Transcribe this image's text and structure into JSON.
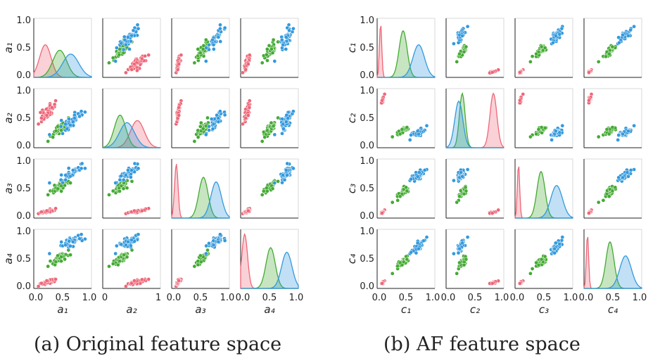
{
  "figure": {
    "caption_a": "(a) Original feature space",
    "caption_b": "(b) AF feature space"
  },
  "colors": {
    "setosa": "#ee6677",
    "versicolor": "#44aa33",
    "virginica": "#3399dd"
  },
  "chart_data": [
    {
      "type": "pairplot",
      "title": "(a) Original feature space",
      "variables": [
        "a₁",
        "a₂",
        "a₃",
        "a₄"
      ],
      "tick_labels": {
        "y_rows": [
          [
            "0.0",
            "0.5",
            "1.0"
          ],
          [
            "0.0",
            "0.5",
            "1.0"
          ],
          [
            "0.0",
            "0.5",
            "1.0"
          ],
          [
            "0.0",
            "0.5",
            "1.0"
          ]
        ],
        "x_cols": [
          [
            "0.0",
            "0.5",
            "1.0"
          ],
          [
            "0",
            "1"
          ],
          [
            "0.0",
            "0.5",
            "1.0"
          ],
          [
            "0.0",
            "0.5",
            "1.0"
          ]
        ]
      },
      "ylim": [
        0,
        1
      ],
      "groups": [
        {
          "color": "#ee6677",
          "mean": [
            0.2,
            0.6,
            0.08,
            0.07
          ],
          "sd": [
            0.1,
            0.12,
            0.03,
            0.05
          ]
        },
        {
          "color": "#44aa33",
          "mean": [
            0.45,
            0.3,
            0.55,
            0.52
          ],
          "sd": [
            0.12,
            0.1,
            0.08,
            0.08
          ]
        },
        {
          "color": "#3399dd",
          "mean": [
            0.64,
            0.42,
            0.77,
            0.8
          ],
          "sd": [
            0.14,
            0.13,
            0.09,
            0.09
          ]
        }
      ],
      "diagonal": "kde"
    },
    {
      "type": "pairplot",
      "title": "(b) AF feature space",
      "variables": [
        "c₁",
        "c₂",
        "c₃",
        "c₄"
      ],
      "tick_labels": {
        "y_rows": [
          [
            "0.0",
            "0.5",
            "1.0"
          ],
          [
            "0.0",
            "0.5",
            "1.0"
          ],
          [
            "0.0",
            "0.5",
            "1.0"
          ],
          [
            "0.0",
            "0.5",
            "1.0"
          ]
        ],
        "x_cols": [
          [
            "0.0",
            "0.5",
            "1.0"
          ],
          [
            "0.0",
            "0.5",
            "1.0"
          ],
          [
            "0.0",
            "0.5",
            "1.0"
          ],
          [
            "0.0",
            "0.5",
            "1.0"
          ]
        ]
      },
      "ylim": [
        0,
        1
      ],
      "groups": [
        {
          "color": "#ee6677",
          "mean": [
            0.06,
            0.82,
            0.06,
            0.06
          ],
          "sd": [
            0.02,
            0.06,
            0.02,
            0.02
          ]
        },
        {
          "color": "#44aa33",
          "mean": [
            0.45,
            0.28,
            0.45,
            0.45
          ],
          "sd": [
            0.07,
            0.05,
            0.07,
            0.07
          ]
        },
        {
          "color": "#3399dd",
          "mean": [
            0.72,
            0.22,
            0.72,
            0.72
          ],
          "sd": [
            0.1,
            0.07,
            0.1,
            0.1
          ]
        }
      ],
      "diagonal": "kde"
    }
  ]
}
